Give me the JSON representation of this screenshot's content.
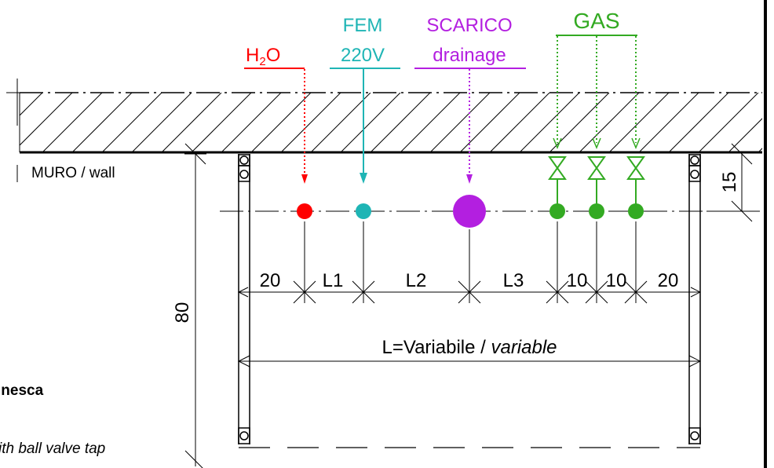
{
  "utilities": {
    "water": {
      "label_main": "H",
      "label_sub": "2",
      "label_tail": "O",
      "color": "#ff0000"
    },
    "fem": {
      "label_top": "FEM",
      "label_bottom": "220V",
      "color": "#1fb5b5"
    },
    "drain": {
      "label_top": "SCARICO",
      "label_bottom": "drainage",
      "color": "#b31fe0"
    },
    "gas": {
      "label": "GAS",
      "color": "#33aa22"
    }
  },
  "wall_label": "MURO / wall",
  "dimensions": {
    "d20_left": "20",
    "l1": "L1",
    "l2": "L2",
    "l3": "L3",
    "d10_a": "10",
    "d10_b": "10",
    "d20_right": "20",
    "depth": "80",
    "offset": "15",
    "length_prefix": "L=Variabile / ",
    "length_italic": "variable"
  },
  "left_notes": {
    "partial_bold": "inesca",
    "partial_italic": "ith ball valve tap"
  },
  "colors": {
    "line": "#000000",
    "hatch": "#000000"
  }
}
